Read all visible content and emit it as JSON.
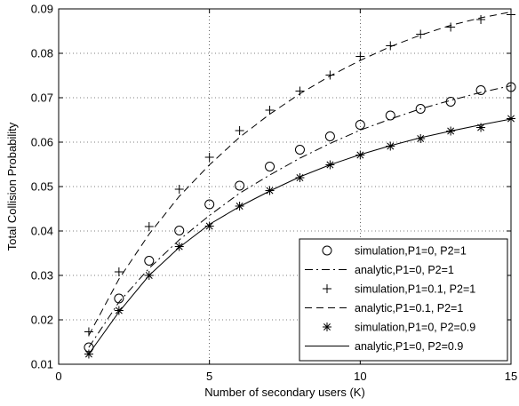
{
  "chart_data": {
    "type": "line",
    "title": "",
    "xlabel": "Number of secondary users (K)",
    "ylabel": "Total Collision Probability",
    "xlim": [
      0,
      15
    ],
    "ylim": [
      0.01,
      0.09
    ],
    "xticks": [
      0,
      5,
      10,
      15
    ],
    "yticks": [
      0.01,
      0.02,
      0.03,
      0.04,
      0.05,
      0.06,
      0.07,
      0.08,
      0.09
    ],
    "xtick_labels": [
      "0",
      "5",
      "10",
      "15"
    ],
    "ytick_labels": [
      "0.01",
      "0.02",
      "0.03",
      "0.04",
      "0.05",
      "0.06",
      "0.07",
      "0.08",
      "0.09"
    ],
    "grid": true,
    "legend_position": "bottom-right",
    "x": [
      1,
      2,
      3,
      4,
      5,
      6,
      7,
      8,
      9,
      10,
      11,
      12,
      13,
      14,
      15
    ],
    "series": [
      {
        "name": "simulation,P1=0, P2=1",
        "style": "marker-circle",
        "values": [
          0.0138,
          0.0248,
          0.0333,
          0.0401,
          0.046,
          0.0502,
          0.0545,
          0.0583,
          0.0613,
          0.0639,
          0.066,
          0.0675,
          0.0691,
          0.0717,
          0.0724
        ]
      },
      {
        "name": "analytic,P1=0, P2=1",
        "style": "dash-dot",
        "values": [
          0.0138,
          0.024,
          0.0316,
          0.038,
          0.0435,
          0.0485,
          0.0526,
          0.0564,
          0.0597,
          0.0627,
          0.0652,
          0.0675,
          0.0694,
          0.0712,
          0.0727
        ]
      },
      {
        "name": "simulation,P1=0.1, P2=1",
        "style": "marker-plus",
        "values": [
          0.0173,
          0.0308,
          0.041,
          0.0494,
          0.0566,
          0.0626,
          0.0672,
          0.0715,
          0.0751,
          0.0793,
          0.0817,
          0.0843,
          0.0859,
          0.0876,
          0.0887
        ]
      },
      {
        "name": "analytic,P1=0.1, P2=1",
        "style": "dashed",
        "values": [
          0.0165,
          0.0292,
          0.0393,
          0.0478,
          0.0549,
          0.0611,
          0.0663,
          0.0709,
          0.0749,
          0.0784,
          0.0815,
          0.0841,
          0.0863,
          0.088,
          0.0893
        ]
      },
      {
        "name": "simulation,P1=0, P2=0.9",
        "style": "marker-star",
        "values": [
          0.0123,
          0.0221,
          0.03,
          0.0365,
          0.0411,
          0.0456,
          0.0491,
          0.052,
          0.0549,
          0.0571,
          0.0591,
          0.0608,
          0.0625,
          0.0633,
          0.0653
        ]
      },
      {
        "name": "analytic,P1=0, P2=0.9",
        "style": "solid",
        "values": [
          0.0123,
          0.0218,
          0.03,
          0.0363,
          0.0415,
          0.0455,
          0.049,
          0.0522,
          0.0549,
          0.0572,
          0.0592,
          0.061,
          0.0625,
          0.0639,
          0.0652
        ]
      }
    ]
  }
}
